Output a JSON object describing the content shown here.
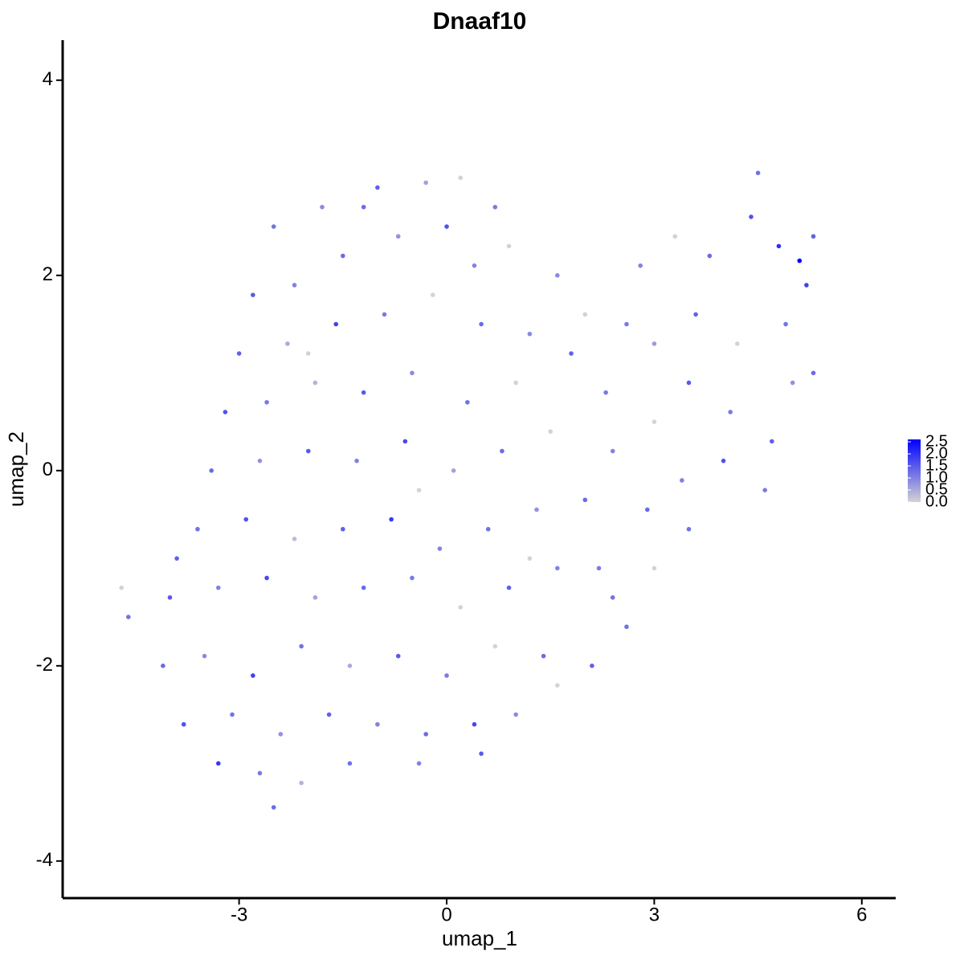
{
  "chart_data": {
    "type": "scatter",
    "title": "Dnaaf10",
    "x_label": "umap_1",
    "y_label": "umap_2",
    "xlim": [
      -5.55,
      6.49
    ],
    "ylim": [
      -4.38,
      4.41
    ],
    "xticks": [
      -3,
      0,
      3,
      6
    ],
    "yticks": [
      -4,
      -2,
      0,
      2,
      4
    ],
    "color_low": "#d3d3d3",
    "color_high": "#0000ff",
    "color_lim": [
      0,
      2.6
    ],
    "color_ticks": [
      {
        "value": 0,
        "label": "0.0"
      },
      {
        "value": 0.5,
        "label": "0.5"
      },
      {
        "value": 1,
        "label": "1.0"
      },
      {
        "value": 1.5,
        "label": "1.5"
      },
      {
        "value": 2,
        "label": "2.0"
      },
      {
        "value": 2.5,
        "label": "2.5"
      }
    ],
    "x": [
      -2.5,
      -1.8,
      -1.0,
      -0.3,
      0.2,
      0.7,
      -2.8,
      -2.2,
      -1.5,
      -0.7,
      0.0,
      0.9,
      -3.0,
      -2.3,
      -1.6,
      -0.9,
      -0.2,
      0.5,
      1.2,
      -3.2,
      -2.6,
      -1.9,
      -1.2,
      -0.5,
      0.3,
      1.0,
      1.8,
      -3.4,
      -2.7,
      -2.0,
      -1.3,
      -0.6,
      0.1,
      0.8,
      1.5,
      2.3,
      -3.6,
      -2.9,
      -2.2,
      -1.5,
      -0.8,
      -0.1,
      0.6,
      1.3,
      2.0,
      -4.0,
      -3.3,
      -2.6,
      -1.9,
      -1.2,
      -0.5,
      0.2,
      0.9,
      1.6,
      2.4,
      -4.1,
      -3.5,
      -2.8,
      -2.1,
      -1.4,
      -0.7,
      0.0,
      0.7,
      1.4,
      -3.8,
      -3.1,
      -2.4,
      -1.7,
      -1.0,
      -0.3,
      0.4,
      1.0,
      -3.3,
      -2.7,
      -2.1,
      -1.4,
      -0.4,
      0.5,
      -2.5,
      -4.7,
      -4.6,
      2.8,
      3.3,
      3.8,
      4.4,
      4.5,
      4.8,
      5.1,
      5.2,
      5.3,
      2.6,
      3.0,
      3.6,
      4.2,
      4.9,
      5.3,
      2.4,
      3.0,
      3.5,
      4.1,
      4.7,
      5.0,
      2.9,
      3.4,
      4.0,
      4.6,
      3.0,
      2.6,
      2.1,
      1.6,
      3.5,
      2.2,
      -1.2,
      0.4,
      1.6,
      2.0,
      -2.0,
      -0.4,
      1.2,
      -3.9
    ],
    "y": [
      2.5,
      2.7,
      2.9,
      2.95,
      3.0,
      2.7,
      1.8,
      1.9,
      2.2,
      2.4,
      2.5,
      2.3,
      1.2,
      1.3,
      1.5,
      1.6,
      1.8,
      1.5,
      1.4,
      0.6,
      0.7,
      0.9,
      0.8,
      1.0,
      0.7,
      0.9,
      1.2,
      0.0,
      0.1,
      0.2,
      0.1,
      0.3,
      0.0,
      0.2,
      0.4,
      0.8,
      -0.6,
      -0.5,
      -0.7,
      -0.6,
      -0.5,
      -0.8,
      -0.6,
      -0.4,
      -0.3,
      -1.3,
      -1.2,
      -1.1,
      -1.3,
      -1.2,
      -1.1,
      -1.4,
      -1.2,
      -1.0,
      -1.3,
      -2.0,
      -1.9,
      -2.1,
      -1.8,
      -2.0,
      -1.9,
      -2.1,
      -1.8,
      -1.9,
      -2.6,
      -2.5,
      -2.7,
      -2.5,
      -2.6,
      -2.7,
      -2.6,
      -2.5,
      -3.0,
      -3.1,
      -3.2,
      -3.0,
      -3.0,
      -2.9,
      -3.45,
      -1.2,
      -1.5,
      2.1,
      2.4,
      2.2,
      2.6,
      3.05,
      2.3,
      2.15,
      1.9,
      2.4,
      1.5,
      1.3,
      1.6,
      1.3,
      1.5,
      1.0,
      0.2,
      0.5,
      0.9,
      0.6,
      0.3,
      0.9,
      -0.4,
      -0.1,
      0.1,
      -0.2,
      -1.0,
      -1.6,
      -2.0,
      -2.2,
      -0.6,
      -1.0,
      2.7,
      2.1,
      2.0,
      1.6,
      1.2,
      -0.2,
      -0.9,
      -0.9
    ],
    "values": [
      1.2,
      0.9,
      1.4,
      0.6,
      0,
      1.1,
      1.5,
      1.0,
      1.3,
      0.8,
      1.6,
      0,
      1.4,
      0.5,
      1.8,
      1.1,
      0,
      1.3,
      0.9,
      1.6,
      1.1,
      0.4,
      1.5,
      0.9,
      1.2,
      0,
      1.4,
      1.3,
      0.8,
      1.5,
      1.0,
      1.7,
      0.6,
      1.3,
      0,
      1.1,
      1.2,
      1.6,
      0.3,
      1.4,
      1.9,
      1.0,
      1.2,
      0.8,
      1.3,
      1.5,
      1.0,
      1.7,
      0.6,
      1.3,
      1.1,
      0,
      1.4,
      1.0,
      1.2,
      1.3,
      0.9,
      1.8,
      1.2,
      0.5,
      1.5,
      1.1,
      0,
      1.3,
      1.6,
      1.2,
      0.8,
      1.4,
      1.0,
      1.3,
      1.7,
      0.9,
      1.9,
      1.1,
      0.4,
      1.2,
      1.0,
      1.5,
      1.3,
      0,
      1.2,
      1.0,
      0,
      1.3,
      1.6,
      1.2,
      2.0,
      2.6,
      1.8,
      1.4,
      1.1,
      0.7,
      1.4,
      0,
      1.2,
      1.3,
      1.0,
      0,
      1.5,
      1.1,
      1.4,
      0.8,
      1.3,
      1.0,
      1.6,
      1.1,
      0,
      1.2,
      1.4,
      0,
      1.2,
      1.1,
      1.3,
      1.0,
      0.9,
      0,
      0,
      0,
      0,
      1.4
    ]
  }
}
